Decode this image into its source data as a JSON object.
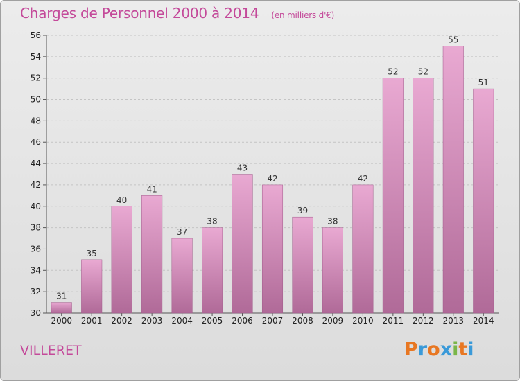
{
  "chart_data": {
    "type": "bar",
    "title": "Charges de Personnel 2000 à 2014",
    "subtitle": "(en milliers d'€)",
    "categories": [
      "2000",
      "2001",
      "2002",
      "2003",
      "2004",
      "2005",
      "2006",
      "2007",
      "2008",
      "2009",
      "2010",
      "2011",
      "2012",
      "2013",
      "2014"
    ],
    "values": [
      31,
      35,
      40,
      41,
      37,
      38,
      43,
      42,
      39,
      38,
      42,
      52,
      52,
      55,
      51
    ],
    "ylim": [
      30,
      56
    ],
    "yticks": [
      30,
      32,
      34,
      36,
      38,
      40,
      42,
      44,
      46,
      48,
      50,
      52,
      54,
      56
    ],
    "grid": true,
    "bar_color_top": "#e9a9d2",
    "bar_color_bottom": "#b06a98"
  },
  "commune": "VILLERET",
  "logo": {
    "letters": [
      "P",
      "r",
      "o",
      "x",
      "i",
      "t",
      "i"
    ],
    "colors": [
      "#e87722",
      "#3a9ad9",
      "#e87722",
      "#3a9ad9",
      "#7ab648",
      "#e87722",
      "#3a9ad9"
    ]
  }
}
